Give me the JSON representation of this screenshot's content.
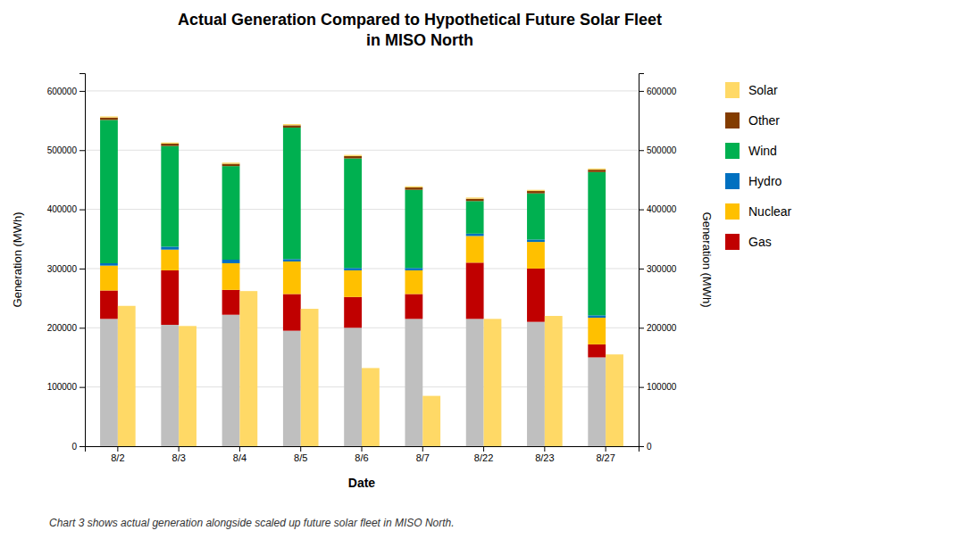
{
  "chart_data": {
    "type": "bar",
    "stacked": true,
    "title": "Actual Generation Compared to Hypothetical Future Solar Fleet\nin MISO North",
    "xlabel": "Date",
    "ylabel": "Generation (MWh)",
    "y2label": "Generation (MWh)",
    "annotations": [
      "Chart 3 shows actual generation alongside scaled up future solar fleet in MISO North."
    ],
    "categories": [
      "8/2",
      "8/3",
      "8/4",
      "8/5",
      "8/6",
      "8/7",
      "8/22",
      "8/23",
      "8/27"
    ],
    "series": [
      {
        "type": "stacked_bar",
        "color": "#bfbfbf",
        "values": [
          215000,
          205000,
          222000,
          195000,
          200000,
          215000,
          215000,
          210000,
          150000
        ]
      },
      {
        "name": "Gas",
        "type": "stacked_bar",
        "color": "#c00000",
        "values": [
          48000,
          92000,
          42000,
          62000,
          52000,
          42000,
          95000,
          90000,
          22000
        ]
      },
      {
        "name": "Nuclear",
        "type": "stacked_bar",
        "color": "#ffc000",
        "values": [
          42000,
          35000,
          45000,
          55000,
          45000,
          40000,
          45000,
          45000,
          45000
        ]
      },
      {
        "name": "Hydro",
        "type": "stacked_bar",
        "color": "#0070c0",
        "values": [
          4000,
          5000,
          6000,
          4000,
          4000,
          4000,
          4000,
          4000,
          4000
        ]
      },
      {
        "name": "Wind",
        "type": "stacked_bar",
        "color": "#00b050",
        "values": [
          242000,
          170000,
          158000,
          222000,
          185000,
          132000,
          55000,
          78000,
          242000
        ]
      },
      {
        "name": "Other",
        "type": "stacked_bar",
        "color": "#833c00",
        "values": [
          4000,
          4000,
          4000,
          4000,
          4000,
          4000,
          4000,
          4000,
          4000
        ]
      },
      {
        "name": "Solar",
        "type": "stacked_bar",
        "color": "#ffd966",
        "values": [
          2000,
          2000,
          2000,
          2000,
          2000,
          2000,
          2000,
          2000,
          2000
        ]
      },
      {
        "type": "bar",
        "color": "#ffd966",
        "values": [
          237000,
          203000,
          262000,
          232000,
          132000,
          85000,
          215000,
          220000,
          155000
        ]
      }
    ],
    "ylim": [
      0,
      630000
    ],
    "yticks": [
      0,
      100000,
      200000,
      300000,
      400000,
      500000,
      600000
    ],
    "y2lim": [
      0,
      630000
    ],
    "y2ticks": [
      0,
      100000,
      200000,
      300000,
      400000,
      500000,
      600000
    ],
    "grid": true
  }
}
